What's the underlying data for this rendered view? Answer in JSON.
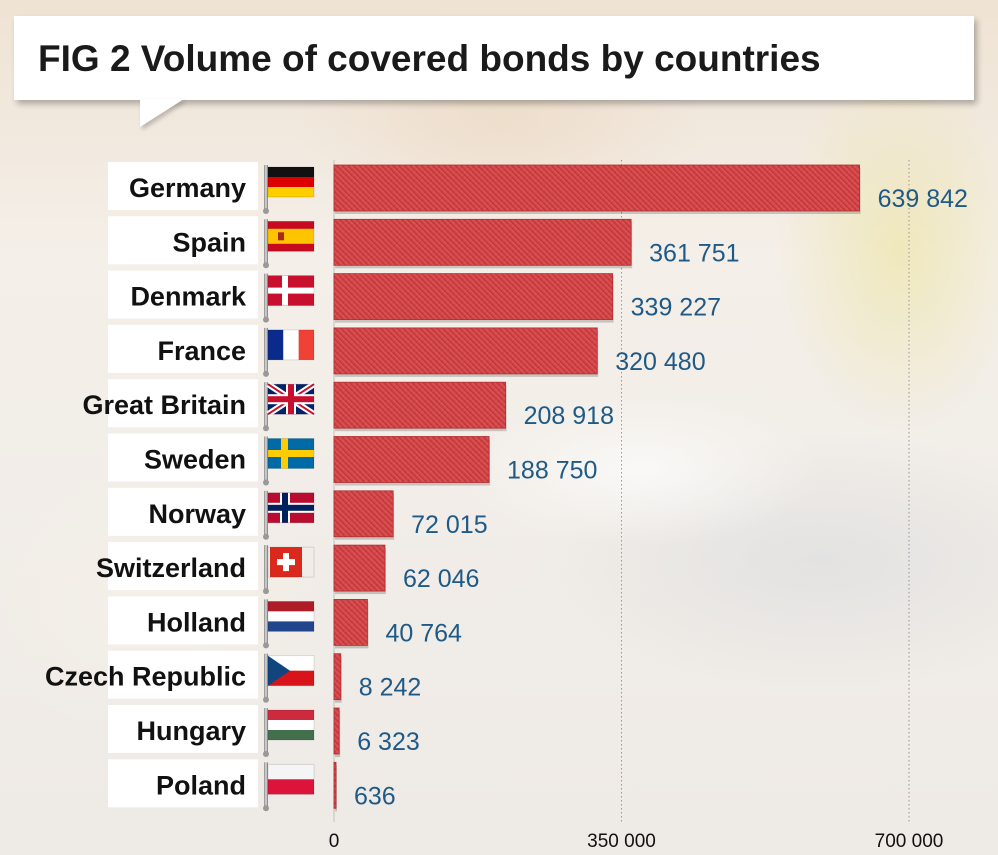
{
  "title": "FIG 2 Volume of covered bonds by countries",
  "chart_data": {
    "type": "bar",
    "orientation": "horizontal",
    "title": "FIG 2 Volume of covered bonds by countries",
    "xlabel": "",
    "ylabel": "",
    "categories": [
      "Germany",
      "Spain",
      "Denmark",
      "France",
      "Great Britain",
      "Sweden",
      "Norway",
      "Switzerland",
      "Holland",
      "Czech Republic",
      "Hungary",
      "Poland"
    ],
    "values": [
      639842,
      361751,
      339227,
      320480,
      208918,
      188750,
      72015,
      62046,
      40764,
      8242,
      6323,
      636
    ],
    "value_labels": [
      "639 842",
      "361 751",
      "339 227",
      "320 480",
      "208 918",
      "188 750",
      "72 015",
      "62 046",
      "40 764",
      "8 242",
      "6 323",
      "636"
    ],
    "xlim": [
      0,
      700000
    ],
    "xticks": [
      0,
      350000,
      700000
    ],
    "xtick_labels": [
      "0",
      "350 000",
      "700 000"
    ],
    "grid": "vertical dotted",
    "flags": [
      "germany-flag",
      "spain-flag",
      "denmark-flag",
      "france-flag",
      "great-britain-flag",
      "sweden-flag",
      "norway-flag",
      "switzerland-flag",
      "holland-flag",
      "czech-republic-flag",
      "hungary-flag",
      "poland-flag"
    ],
    "bar_color": "#d8474a",
    "value_color": "#1f5a87"
  }
}
